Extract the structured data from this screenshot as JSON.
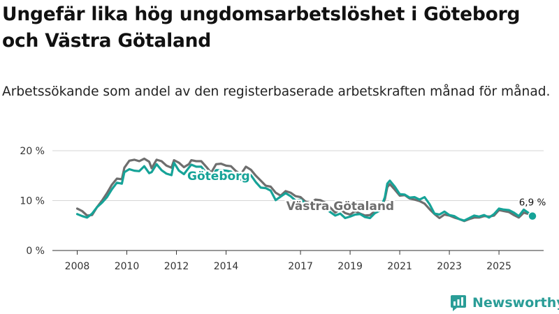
{
  "header": {
    "title": "Ungefär lika hög ungdomsarbetslöshet i Göteborg och Västra Götaland",
    "subtitle": "Arbetssökande som andel av den registerbaserade arbetskraften månad för månad."
  },
  "brand": {
    "name": "Newsworthy",
    "color": "#2a9d97"
  },
  "colors": {
    "goteborg": "#16a398",
    "vastra": "#6e6e6e",
    "grid": "#d6d6d6",
    "axis": "#333333",
    "halo": "#ffffff"
  },
  "chart_data": {
    "type": "line",
    "x_unit": "year",
    "xlim": [
      2007.0,
      2026.8
    ],
    "ylim": [
      0,
      20
    ],
    "y_ticks": [
      {
        "value": 0,
        "label": "0 %"
      },
      {
        "value": 10,
        "label": "10 %"
      },
      {
        "value": 20,
        "label": "20 %"
      }
    ],
    "x_ticks": [
      {
        "value": 2008,
        "label": "2008"
      },
      {
        "value": 2010,
        "label": "2010"
      },
      {
        "value": 2012,
        "label": "2012"
      },
      {
        "value": 2014,
        "label": "2014"
      },
      {
        "value": 2017,
        "label": "2017"
      },
      {
        "value": 2019,
        "label": "2019"
      },
      {
        "value": 2021,
        "label": "2021"
      },
      {
        "value": 2023,
        "label": "2023"
      },
      {
        "value": 2025,
        "label": "2025"
      }
    ],
    "series": [
      {
        "name": "Västra Götaland",
        "color": "#6e6e6e",
        "label_position": {
          "x": 2018.6,
          "y": 8.1
        },
        "points": [
          [
            2008.0,
            8.4
          ],
          [
            2008.2,
            7.9
          ],
          [
            2008.4,
            7.0
          ],
          [
            2008.6,
            7.1
          ],
          [
            2008.8,
            8.7
          ],
          [
            2009.0,
            10.0
          ],
          [
            2009.2,
            11.5
          ],
          [
            2009.4,
            13.2
          ],
          [
            2009.6,
            14.4
          ],
          [
            2009.8,
            14.3
          ],
          [
            2009.9,
            16.6
          ],
          [
            2010.1,
            18.0
          ],
          [
            2010.3,
            18.2
          ],
          [
            2010.5,
            17.9
          ],
          [
            2010.7,
            18.4
          ],
          [
            2010.9,
            17.8
          ],
          [
            2011.0,
            16.5
          ],
          [
            2011.2,
            18.2
          ],
          [
            2011.4,
            17.9
          ],
          [
            2011.6,
            17.0
          ],
          [
            2011.8,
            16.6
          ],
          [
            2011.9,
            18.1
          ],
          [
            2012.1,
            17.6
          ],
          [
            2012.3,
            16.7
          ],
          [
            2012.5,
            17.3
          ],
          [
            2012.6,
            18.1
          ],
          [
            2012.8,
            17.9
          ],
          [
            2013.0,
            17.9
          ],
          [
            2013.2,
            16.8
          ],
          [
            2013.4,
            15.6
          ],
          [
            2013.6,
            17.3
          ],
          [
            2013.8,
            17.4
          ],
          [
            2014.0,
            17.0
          ],
          [
            2014.2,
            16.9
          ],
          [
            2014.4,
            15.9
          ],
          [
            2014.6,
            15.3
          ],
          [
            2014.8,
            16.8
          ],
          [
            2015.0,
            16.2
          ],
          [
            2015.2,
            15.0
          ],
          [
            2015.4,
            14.0
          ],
          [
            2015.6,
            13.0
          ],
          [
            2015.8,
            12.8
          ],
          [
            2016.0,
            11.6
          ],
          [
            2016.2,
            11.0
          ],
          [
            2016.4,
            11.9
          ],
          [
            2016.6,
            11.6
          ],
          [
            2016.8,
            10.9
          ],
          [
            2017.0,
            10.7
          ],
          [
            2017.2,
            9.8
          ],
          [
            2017.4,
            9.5
          ],
          [
            2017.6,
            10.2
          ],
          [
            2017.8,
            10.1
          ],
          [
            2018.0,
            9.6
          ],
          [
            2018.2,
            8.6
          ],
          [
            2018.4,
            7.6
          ],
          [
            2018.6,
            8.3
          ],
          [
            2018.8,
            7.5
          ],
          [
            2019.0,
            7.2
          ],
          [
            2019.2,
            7.9
          ],
          [
            2019.4,
            7.4
          ],
          [
            2019.6,
            7.0
          ],
          [
            2019.8,
            7.1
          ],
          [
            2020.0,
            7.9
          ],
          [
            2020.2,
            8.2
          ],
          [
            2020.4,
            10.3
          ],
          [
            2020.5,
            12.7
          ],
          [
            2020.6,
            13.3
          ],
          [
            2020.8,
            12.2
          ],
          [
            2021.0,
            11.0
          ],
          [
            2021.2,
            11.1
          ],
          [
            2021.4,
            10.4
          ],
          [
            2021.6,
            10.2
          ],
          [
            2021.8,
            9.9
          ],
          [
            2022.0,
            9.4
          ],
          [
            2022.2,
            8.3
          ],
          [
            2022.4,
            7.3
          ],
          [
            2022.6,
            6.5
          ],
          [
            2022.8,
            7.2
          ],
          [
            2023.0,
            7.0
          ],
          [
            2023.2,
            6.6
          ],
          [
            2023.4,
            6.3
          ],
          [
            2023.6,
            5.9
          ],
          [
            2023.8,
            6.3
          ],
          [
            2024.0,
            6.6
          ],
          [
            2024.2,
            6.6
          ],
          [
            2024.4,
            6.9
          ],
          [
            2024.6,
            6.8
          ],
          [
            2024.8,
            7.0
          ],
          [
            2025.0,
            8.1
          ],
          [
            2025.2,
            7.9
          ],
          [
            2025.4,
            7.7
          ],
          [
            2025.6,
            7.1
          ],
          [
            2025.8,
            6.6
          ],
          [
            2026.0,
            7.6
          ],
          [
            2026.2,
            7.3
          ]
        ]
      },
      {
        "name": "Göteborg",
        "color": "#16a398",
        "label_position": {
          "x": 2013.7,
          "y": 14.1
        },
        "end_value_label": "6,9 %",
        "end_value": [
          2026.35,
          6.9
        ],
        "points": [
          [
            2008.0,
            7.3
          ],
          [
            2008.2,
            6.9
          ],
          [
            2008.4,
            6.6
          ],
          [
            2008.6,
            7.4
          ],
          [
            2008.8,
            8.7
          ],
          [
            2009.0,
            9.6
          ],
          [
            2009.2,
            10.7
          ],
          [
            2009.4,
            12.3
          ],
          [
            2009.6,
            13.6
          ],
          [
            2009.8,
            13.4
          ],
          [
            2009.9,
            15.7
          ],
          [
            2010.1,
            16.3
          ],
          [
            2010.3,
            16.0
          ],
          [
            2010.5,
            15.9
          ],
          [
            2010.7,
            16.9
          ],
          [
            2010.9,
            15.5
          ],
          [
            2011.0,
            15.7
          ],
          [
            2011.2,
            17.3
          ],
          [
            2011.4,
            16.1
          ],
          [
            2011.6,
            15.4
          ],
          [
            2011.8,
            15.1
          ],
          [
            2011.9,
            17.6
          ],
          [
            2012.1,
            16.0
          ],
          [
            2012.3,
            15.3
          ],
          [
            2012.5,
            16.6
          ],
          [
            2012.6,
            17.2
          ],
          [
            2012.8,
            16.8
          ],
          [
            2013.0,
            16.8
          ],
          [
            2013.2,
            15.6
          ],
          [
            2013.4,
            14.6
          ],
          [
            2013.6,
            16.1
          ],
          [
            2013.8,
            16.1
          ],
          [
            2014.0,
            16.0
          ],
          [
            2014.2,
            15.8
          ],
          [
            2014.4,
            14.8
          ],
          [
            2014.6,
            14.2
          ],
          [
            2014.8,
            15.3
          ],
          [
            2015.0,
            15.1
          ],
          [
            2015.2,
            13.7
          ],
          [
            2015.4,
            12.6
          ],
          [
            2015.6,
            12.5
          ],
          [
            2015.8,
            12.0
          ],
          [
            2016.0,
            10.1
          ],
          [
            2016.2,
            10.8
          ],
          [
            2016.4,
            11.5
          ],
          [
            2016.6,
            10.9
          ],
          [
            2016.8,
            10.0
          ],
          [
            2017.0,
            10.2
          ],
          [
            2017.2,
            9.5
          ],
          [
            2017.4,
            8.8
          ],
          [
            2017.6,
            9.1
          ],
          [
            2017.8,
            9.0
          ],
          [
            2018.0,
            8.4
          ],
          [
            2018.2,
            7.7
          ],
          [
            2018.4,
            7.0
          ],
          [
            2018.6,
            7.4
          ],
          [
            2018.8,
            6.5
          ],
          [
            2019.0,
            6.8
          ],
          [
            2019.2,
            7.2
          ],
          [
            2019.4,
            7.3
          ],
          [
            2019.6,
            6.7
          ],
          [
            2019.8,
            6.5
          ],
          [
            2020.0,
            7.5
          ],
          [
            2020.2,
            8.0
          ],
          [
            2020.4,
            10.7
          ],
          [
            2020.5,
            13.4
          ],
          [
            2020.6,
            14.0
          ],
          [
            2020.8,
            12.8
          ],
          [
            2021.0,
            11.3
          ],
          [
            2021.2,
            11.2
          ],
          [
            2021.4,
            10.6
          ],
          [
            2021.6,
            10.7
          ],
          [
            2021.8,
            10.2
          ],
          [
            2022.0,
            10.7
          ],
          [
            2022.2,
            9.3
          ],
          [
            2022.4,
            7.4
          ],
          [
            2022.6,
            7.2
          ],
          [
            2022.8,
            7.8
          ],
          [
            2023.0,
            7.1
          ],
          [
            2023.2,
            6.9
          ],
          [
            2023.4,
            6.3
          ],
          [
            2023.6,
            6.0
          ],
          [
            2023.8,
            6.5
          ],
          [
            2024.0,
            7.0
          ],
          [
            2024.2,
            6.8
          ],
          [
            2024.4,
            7.1
          ],
          [
            2024.6,
            6.6
          ],
          [
            2024.8,
            7.3
          ],
          [
            2025.0,
            8.4
          ],
          [
            2025.2,
            8.2
          ],
          [
            2025.4,
            8.1
          ],
          [
            2025.6,
            7.6
          ],
          [
            2025.8,
            6.9
          ],
          [
            2026.0,
            8.2
          ],
          [
            2026.2,
            7.5
          ],
          [
            2026.35,
            6.9
          ]
        ]
      }
    ]
  }
}
